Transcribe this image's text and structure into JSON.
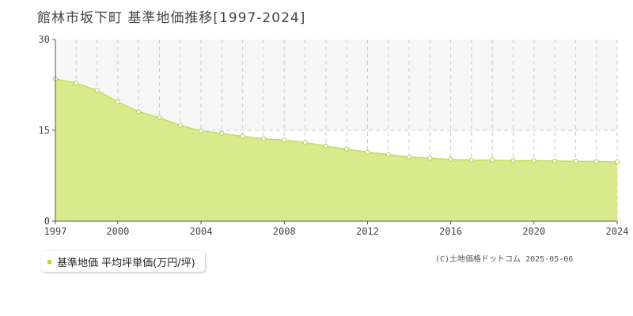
{
  "title": "館林市坂下町 基準地価推移[1997-2024]",
  "legend_label": "基準地価 平均坪単価(万円/坪)",
  "copyright": "(C)土地価格ドットコム 2025-05-06",
  "colors": {
    "area_fill": "#d8ea8c",
    "line": "#c2de5a",
    "marker_stroke": "#b2cf4a",
    "band": "#f7f7f7",
    "grid": "#cccccc",
    "axis": "#555555",
    "legend_swatch": "#b5d93a"
  },
  "chart_data": {
    "type": "area",
    "xlabel": "",
    "ylabel": "",
    "x": [
      1997,
      1998,
      1999,
      2000,
      2001,
      2002,
      2003,
      2004,
      2005,
      2006,
      2007,
      2008,
      2009,
      2010,
      2011,
      2012,
      2013,
      2014,
      2015,
      2016,
      2017,
      2018,
      2019,
      2020,
      2021,
      2022,
      2023,
      2024
    ],
    "series": [
      {
        "name": "基準地価 平均坪単価(万円/坪)",
        "values": [
          23.5,
          22.8,
          21.6,
          19.7,
          18.1,
          17.1,
          15.8,
          14.9,
          14.5,
          14.0,
          13.6,
          13.4,
          13.0,
          12.4,
          11.9,
          11.4,
          11.0,
          10.6,
          10.4,
          10.2,
          10.1,
          10.1,
          10.0,
          10.0,
          9.95,
          9.9,
          9.85,
          9.8
        ]
      }
    ],
    "xlim": [
      1997,
      2024
    ],
    "ylim": [
      0,
      30
    ],
    "xticks": [
      "1997",
      "2000",
      "2004",
      "2008",
      "2012",
      "2016",
      "2020",
      "2024"
    ],
    "yticks": [
      "0",
      "15",
      "30"
    ],
    "grid": true,
    "legend_position": "bottom-left"
  }
}
